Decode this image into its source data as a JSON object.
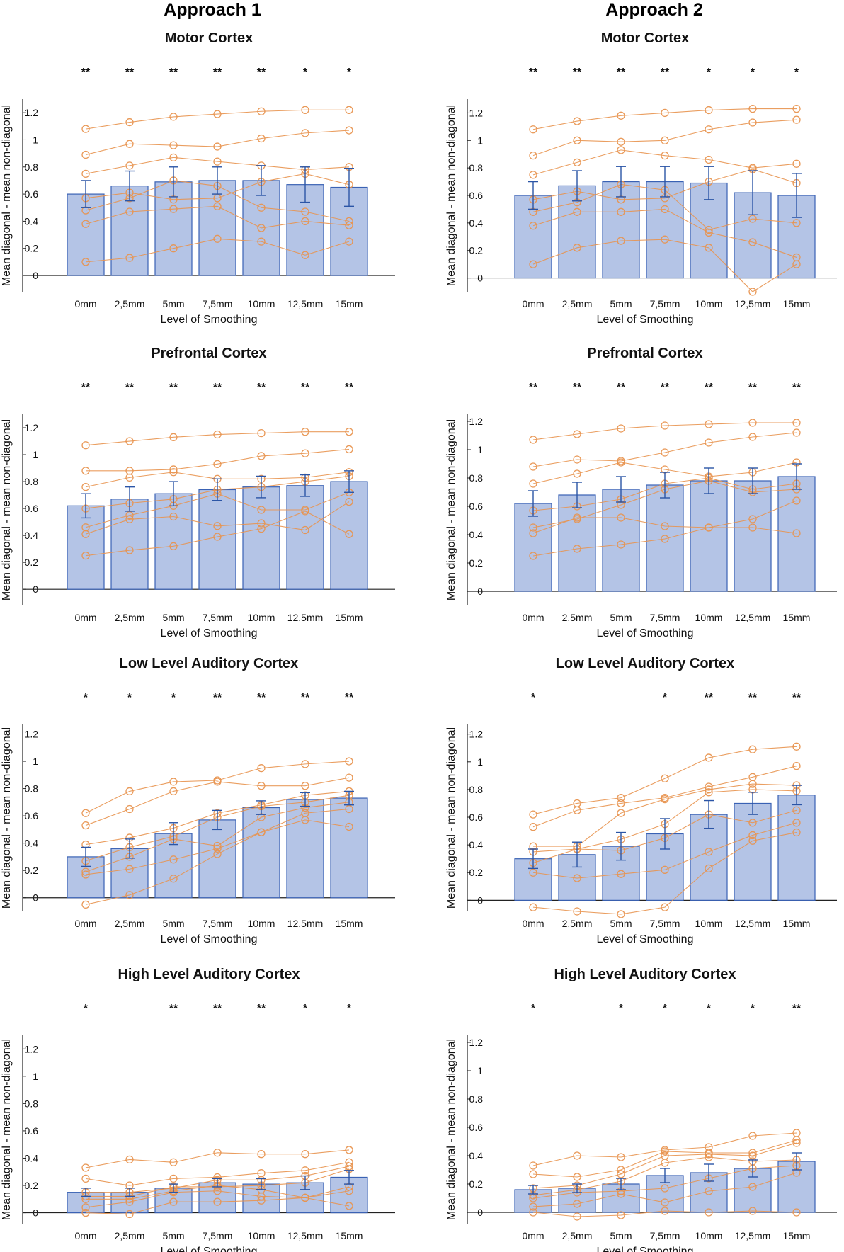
{
  "headers": [
    "Approach 1",
    "Approach 2"
  ],
  "colors": {
    "bar_fill": "#b4c4e6",
    "bar_stroke": "#3a62b4",
    "error": "#2b55a6",
    "subject": "#e8944f",
    "axis": "#222222",
    "tick_text": "#111111"
  },
  "chart_data": [
    {
      "type": "bar",
      "approach": "Approach 1",
      "title": "Motor Cortex",
      "categories": [
        "0mm",
        "2,5mm",
        "5mm",
        "7,5mm",
        "10mm",
        "12,5mm",
        "15mm"
      ],
      "xlabel": "Level of Smoothing",
      "ylabel": "Mean diagonal - mean non-diagonal",
      "ylim": [
        -0.12,
        1.3
      ],
      "yticks": [
        0,
        0.2,
        0.4,
        0.6,
        0.8,
        1,
        1.2
      ],
      "ytick_labels": [
        "0",
        "0.2",
        "0.4",
        "0.6",
        "0.8",
        "1",
        "1.2"
      ],
      "values": [
        0.6,
        0.66,
        0.69,
        0.7,
        0.7,
        0.67,
        0.65
      ],
      "errors": [
        0.1,
        0.11,
        0.11,
        0.1,
        0.11,
        0.13,
        0.14
      ],
      "significance": [
        "**",
        "**",
        "**",
        "**",
        "**",
        "*",
        "*"
      ],
      "subjects": [
        [
          1.08,
          1.13,
          1.17,
          1.19,
          1.21,
          1.22,
          1.22
        ],
        [
          0.89,
          0.97,
          0.96,
          0.95,
          1.01,
          1.05,
          1.07
        ],
        [
          0.75,
          0.81,
          0.87,
          0.84,
          0.81,
          0.78,
          0.8
        ],
        [
          0.57,
          0.61,
          0.56,
          0.57,
          0.69,
          0.75,
          0.67
        ],
        [
          0.48,
          0.57,
          0.7,
          0.66,
          0.5,
          0.47,
          0.4
        ],
        [
          0.38,
          0.47,
          0.49,
          0.51,
          0.35,
          0.4,
          0.37
        ],
        [
          0.1,
          0.13,
          0.2,
          0.27,
          0.25,
          0.15,
          0.25
        ]
      ]
    },
    {
      "type": "bar",
      "approach": "Approach 2",
      "title": "Motor Cortex",
      "categories": [
        "0mm",
        "2,5mm",
        "5mm",
        "7,5mm",
        "10mm",
        "12,5mm",
        "15mm"
      ],
      "xlabel": "Level of Smoothing",
      "ylabel": "Mean diagonal - mean non-diagonal",
      "ylim": [
        -0.1,
        1.3
      ],
      "yticks": [
        0,
        0.2,
        0.4,
        0.6,
        0.8,
        1,
        1.2
      ],
      "ytick_labels": [
        "0",
        "0.2",
        "0.4",
        "0.6",
        "0.8",
        "1",
        "1.2"
      ],
      "values": [
        0.6,
        0.67,
        0.7,
        0.7,
        0.69,
        0.62,
        0.6
      ],
      "errors": [
        0.1,
        0.11,
        0.11,
        0.11,
        0.12,
        0.16,
        0.16
      ],
      "significance": [
        "**",
        "**",
        "**",
        "**",
        "*",
        "*",
        "*"
      ],
      "subjects": [
        [
          1.08,
          1.14,
          1.18,
          1.2,
          1.22,
          1.23,
          1.23
        ],
        [
          0.89,
          1.0,
          0.99,
          1.0,
          1.08,
          1.13,
          1.15
        ],
        [
          0.75,
          0.84,
          0.93,
          0.89,
          0.86,
          0.8,
          0.83
        ],
        [
          0.57,
          0.63,
          0.57,
          0.58,
          0.7,
          0.79,
          0.69
        ],
        [
          0.48,
          0.55,
          0.68,
          0.64,
          0.35,
          0.43,
          0.4
        ],
        [
          0.38,
          0.48,
          0.48,
          0.5,
          0.33,
          0.26,
          0.15
        ],
        [
          0.1,
          0.22,
          0.27,
          0.28,
          0.22,
          -0.1,
          0.1
        ]
      ]
    },
    {
      "type": "bar",
      "approach": "Approach 1",
      "title": "Prefrontal Cortex",
      "categories": [
        "0mm",
        "2,5mm",
        "5mm",
        "7,5mm",
        "10mm",
        "12,5mm",
        "15mm"
      ],
      "xlabel": "Level of Smoothing",
      "ylabel": "Mean diagonal - mean non-diagonal",
      "ylim": [
        -0.12,
        1.3
      ],
      "yticks": [
        0,
        0.2,
        0.4,
        0.6,
        0.8,
        1,
        1.2
      ],
      "ytick_labels": [
        "0",
        "0.2",
        "0.4",
        "0.6",
        "0.8",
        "1",
        "1.2"
      ],
      "values": [
        0.62,
        0.67,
        0.71,
        0.74,
        0.76,
        0.77,
        0.8
      ],
      "errors": [
        0.09,
        0.09,
        0.09,
        0.08,
        0.08,
        0.08,
        0.08
      ],
      "significance": [
        "**",
        "**",
        "**",
        "**",
        "**",
        "**",
        "**"
      ],
      "subjects": [
        [
          1.07,
          1.1,
          1.13,
          1.15,
          1.16,
          1.17,
          1.17
        ],
        [
          0.88,
          0.88,
          0.89,
          0.93,
          0.99,
          1.01,
          1.04
        ],
        [
          0.76,
          0.83,
          0.87,
          0.82,
          0.82,
          0.83,
          0.87
        ],
        [
          0.6,
          0.64,
          0.67,
          0.74,
          0.76,
          0.8,
          0.84
        ],
        [
          0.46,
          0.55,
          0.62,
          0.71,
          0.59,
          0.59,
          0.72
        ],
        [
          0.41,
          0.52,
          0.54,
          0.47,
          0.49,
          0.44,
          0.65
        ],
        [
          0.25,
          0.29,
          0.32,
          0.39,
          0.45,
          0.58,
          0.41
        ]
      ]
    },
    {
      "type": "bar",
      "approach": "Approach 2",
      "title": "Prefrontal Cortex",
      "categories": [
        "0mm",
        "2,5mm",
        "5mm",
        "7,5mm",
        "10mm",
        "12,5mm",
        "15mm"
      ],
      "xlabel": "Level of Smoothing",
      "ylabel": "Mean diagonal - mean non-diagonal",
      "ylim": [
        -0.1,
        1.25
      ],
      "yticks": [
        0,
        0.2,
        0.4,
        0.6,
        0.8,
        1,
        1.2
      ],
      "ytick_labels": [
        "0",
        "0.2",
        "0.4",
        "0.6",
        "0.8",
        "1",
        "1.2"
      ],
      "values": [
        0.62,
        0.68,
        0.72,
        0.75,
        0.78,
        0.78,
        0.81
      ],
      "errors": [
        0.09,
        0.09,
        0.09,
        0.09,
        0.09,
        0.09,
        0.09
      ],
      "significance": [
        "**",
        "**",
        "**",
        "**",
        "**",
        "**",
        "**"
      ],
      "subjects": [
        [
          1.07,
          1.11,
          1.15,
          1.17,
          1.18,
          1.19,
          1.19
        ],
        [
          0.88,
          0.93,
          0.92,
          0.98,
          1.05,
          1.09,
          1.12
        ],
        [
          0.76,
          0.83,
          0.91,
          0.86,
          0.81,
          0.84,
          0.91
        ],
        [
          0.57,
          0.6,
          0.65,
          0.76,
          0.8,
          0.72,
          0.76
        ],
        [
          0.45,
          0.51,
          0.61,
          0.72,
          0.78,
          0.7,
          0.72
        ],
        [
          0.41,
          0.52,
          0.52,
          0.46,
          0.45,
          0.51,
          0.64
        ],
        [
          0.25,
          0.3,
          0.33,
          0.37,
          0.45,
          0.45,
          0.41
        ]
      ]
    },
    {
      "type": "bar",
      "approach": "Approach 1",
      "title": "Low Level Auditory Cortex",
      "categories": [
        "0mm",
        "2,5mm",
        "5mm",
        "7,5mm",
        "10mm",
        "12,5mm",
        "15mm"
      ],
      "xlabel": "Level of Smoothing",
      "ylabel": "Mean diagonal - mean non-diagonal",
      "ylim": [
        -0.1,
        1.27
      ],
      "yticks": [
        0,
        0.2,
        0.4,
        0.6,
        0.8,
        1,
        1.2
      ],
      "ytick_labels": [
        "0",
        "0.2",
        "0.4",
        "0.6",
        "0.8",
        "1",
        "1.2"
      ],
      "values": [
        0.3,
        0.36,
        0.47,
        0.57,
        0.66,
        0.72,
        0.73
      ],
      "errors": [
        0.07,
        0.07,
        0.08,
        0.07,
        0.05,
        0.05,
        0.05
      ],
      "significance": [
        "*",
        "*",
        "*",
        "**",
        "**",
        "**",
        "**"
      ],
      "subjects": [
        [
          0.62,
          0.78,
          0.85,
          0.86,
          0.95,
          0.98,
          1.0
        ],
        [
          0.53,
          0.65,
          0.78,
          0.85,
          0.82,
          0.82,
          0.88
        ],
        [
          0.39,
          0.44,
          0.51,
          0.62,
          0.68,
          0.75,
          0.78
        ],
        [
          0.27,
          0.37,
          0.45,
          0.59,
          0.67,
          0.7,
          0.75
        ],
        [
          0.19,
          0.3,
          0.43,
          0.38,
          0.59,
          0.66,
          0.7
        ],
        [
          0.17,
          0.21,
          0.28,
          0.36,
          0.48,
          0.62,
          0.65
        ],
        [
          -0.05,
          0.02,
          0.14,
          0.32,
          0.48,
          0.57,
          0.52
        ]
      ]
    },
    {
      "type": "bar",
      "approach": "Approach 2",
      "title": "Low Level Auditory Cortex",
      "categories": [
        "0mm",
        "2,5mm",
        "5mm",
        "7,5mm",
        "10mm",
        "12,5mm",
        "15mm"
      ],
      "xlabel": "Level of Smoothing",
      "ylabel": "Mean diagonal - mean non-diagonal",
      "ylim": [
        -0.08,
        1.27
      ],
      "yticks": [
        0,
        0.2,
        0.4,
        0.6,
        0.8,
        1,
        1.2
      ],
      "ytick_labels": [
        "0",
        "0.2",
        "0.4",
        "0.6",
        "0.8",
        "1",
        "1.2"
      ],
      "values": [
        0.3,
        0.33,
        0.39,
        0.48,
        0.62,
        0.7,
        0.76
      ],
      "errors": [
        0.07,
        0.09,
        0.1,
        0.11,
        0.1,
        0.08,
        0.07
      ],
      "significance": [
        "*",
        "",
        "",
        "*",
        "**",
        "**",
        "**"
      ],
      "subjects": [
        [
          0.62,
          0.7,
          0.74,
          0.88,
          1.03,
          1.09,
          1.11
        ],
        [
          0.53,
          0.65,
          0.7,
          0.74,
          0.82,
          0.89,
          0.97
        ],
        [
          0.39,
          0.39,
          0.63,
          0.73,
          0.8,
          0.84,
          0.83
        ],
        [
          0.35,
          0.37,
          0.44,
          0.55,
          0.78,
          0.8,
          0.79
        ],
        [
          0.27,
          0.37,
          0.36,
          0.45,
          0.62,
          0.56,
          0.65
        ],
        [
          0.2,
          0.16,
          0.19,
          0.22,
          0.35,
          0.47,
          0.56
        ],
        [
          -0.05,
          -0.08,
          -0.1,
          -0.05,
          0.23,
          0.43,
          0.49
        ]
      ]
    },
    {
      "type": "bar",
      "approach": "Approach 1",
      "title": "High Level Auditory Cortex",
      "categories": [
        "0mm",
        "2,5mm",
        "5mm",
        "7,5mm",
        "10mm",
        "12,5mm",
        "15mm"
      ],
      "xlabel": "Level of Smoothing",
      "ylabel": "Mean diagonal - mean non-diagonal",
      "ylim": [
        -0.08,
        1.3
      ],
      "yticks": [
        0,
        0.2,
        0.4,
        0.6,
        0.8,
        1,
        1.2
      ],
      "ytick_labels": [
        "0",
        "0.2",
        "0.4",
        "0.6",
        "0.8",
        "1",
        "1.2"
      ],
      "values": [
        0.15,
        0.15,
        0.18,
        0.22,
        0.21,
        0.22,
        0.26
      ],
      "errors": [
        0.03,
        0.03,
        0.03,
        0.03,
        0.04,
        0.05,
        0.05
      ],
      "significance": [
        "*",
        "",
        "**",
        "**",
        "**",
        "*",
        "*"
      ],
      "subjects": [
        [
          0.33,
          0.39,
          0.37,
          0.44,
          0.43,
          0.43,
          0.46
        ],
        [
          0.25,
          0.2,
          0.25,
          0.26,
          0.29,
          0.31,
          0.37
        ],
        [
          0.15,
          0.15,
          0.18,
          0.24,
          0.24,
          0.27,
          0.34
        ],
        [
          0.12,
          0.12,
          0.19,
          0.19,
          0.2,
          0.22,
          0.32
        ],
        [
          0.1,
          0.1,
          0.16,
          0.2,
          0.17,
          0.11,
          0.19
        ],
        [
          0.04,
          0.08,
          0.15,
          0.16,
          0.12,
          0.11,
          0.16
        ],
        [
          0.0,
          -0.01,
          0.08,
          0.08,
          0.09,
          0.11,
          0.05
        ]
      ]
    },
    {
      "type": "bar",
      "approach": "Approach 2",
      "title": "High Level Auditory Cortex",
      "categories": [
        "0mm",
        "2,5mm",
        "5mm",
        "7,5mm",
        "10mm",
        "12,5mm",
        "15mm"
      ],
      "xlabel": "Level of Smoothing",
      "ylabel": "Mean diagonal - mean non-diagonal",
      "ylim": [
        -0.08,
        1.25
      ],
      "yticks": [
        0,
        0.2,
        0.4,
        0.6,
        0.8,
        1,
        1.2
      ],
      "ytick_labels": [
        "0",
        "0.2",
        "0.4",
        "0.6",
        "0.8",
        "1",
        "1.2"
      ],
      "values": [
        0.16,
        0.17,
        0.2,
        0.26,
        0.28,
        0.31,
        0.36
      ],
      "errors": [
        0.03,
        0.03,
        0.04,
        0.05,
        0.06,
        0.06,
        0.06
      ],
      "significance": [
        "*",
        "",
        "*",
        "*",
        "*",
        "*",
        "**"
      ],
      "subjects": [
        [
          0.33,
          0.4,
          0.39,
          0.44,
          0.46,
          0.54,
          0.56
        ],
        [
          0.27,
          0.25,
          0.3,
          0.43,
          0.42,
          0.42,
          0.51
        ],
        [
          0.17,
          0.19,
          0.27,
          0.4,
          0.41,
          0.4,
          0.49
        ],
        [
          0.12,
          0.16,
          0.22,
          0.35,
          0.39,
          0.36,
          0.37
        ],
        [
          0.1,
          0.14,
          0.15,
          0.17,
          0.24,
          0.31,
          0.33
        ],
        [
          0.04,
          0.06,
          0.13,
          0.07,
          0.15,
          0.18,
          0.28
        ],
        [
          0.0,
          -0.03,
          -0.02,
          0.01,
          0.0,
          0.01,
          0.0
        ]
      ]
    }
  ]
}
